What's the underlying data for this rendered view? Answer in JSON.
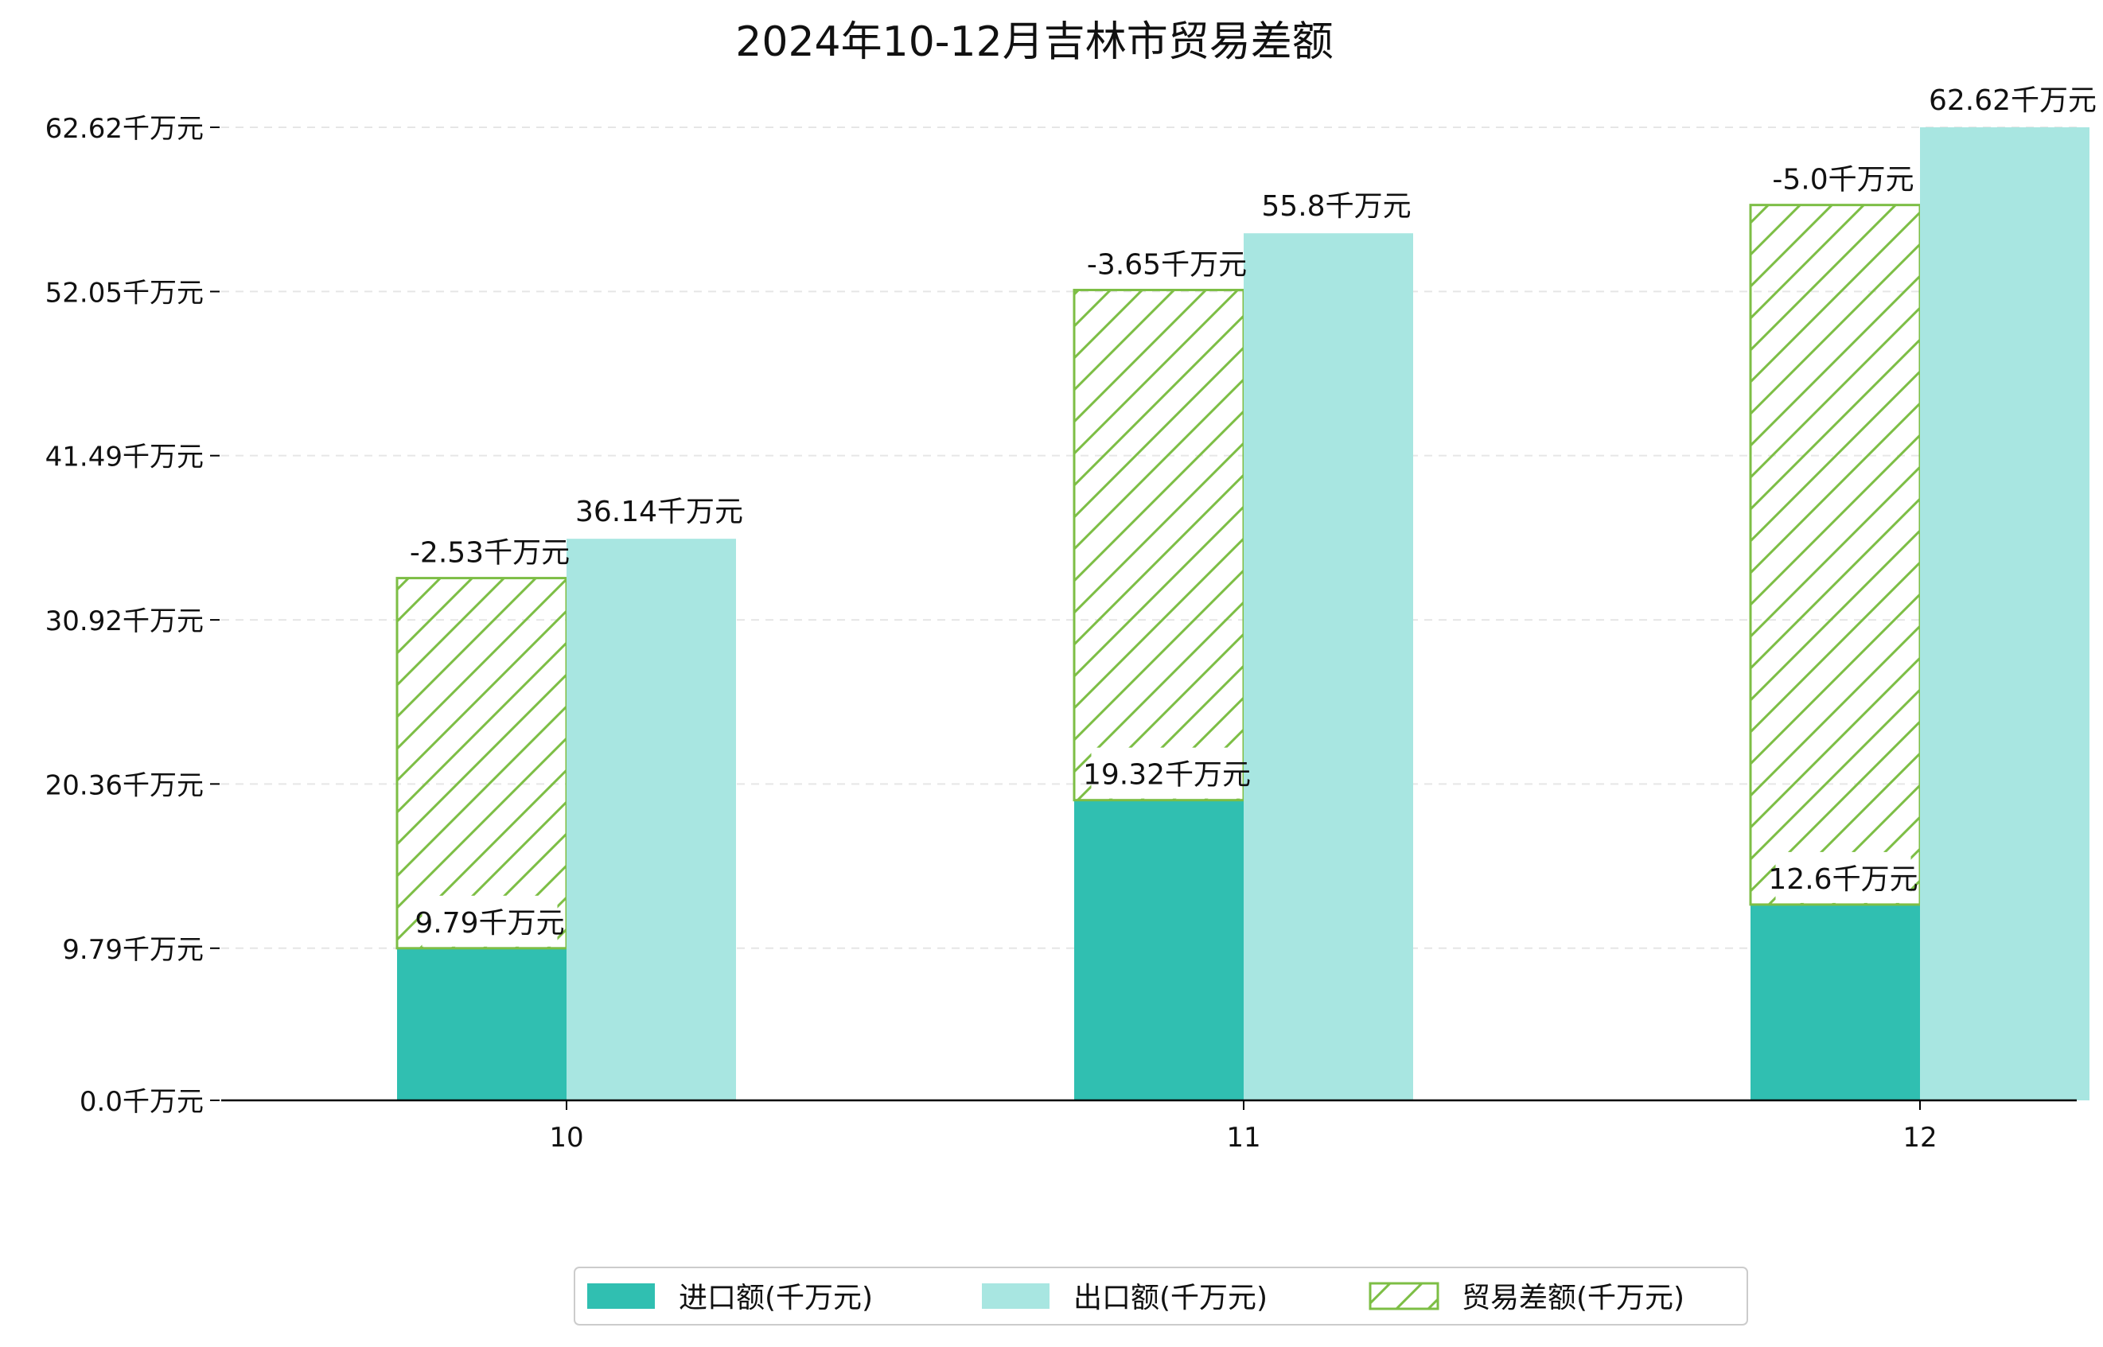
{
  "chart_data": {
    "type": "bar",
    "title": "2024年10-12月吉林市贸易差额",
    "xlabel": "",
    "ylabel": "",
    "categories": [
      "10",
      "11",
      "12"
    ],
    "unit_suffix": "千万元",
    "ylim": [
      0,
      62.62
    ],
    "yticks": [
      0.0,
      9.79,
      20.36,
      30.92,
      41.49,
      52.05,
      62.62
    ],
    "ytick_labels": [
      "0.0千万元",
      "9.79千万元",
      "20.36千万元",
      "30.92千万元",
      "41.49千万元",
      "52.05千万元",
      "62.62千万元"
    ],
    "grid": true,
    "legend_position": "bottom-center",
    "series": [
      {
        "name": "进口额(千万元)",
        "values": [
          9.79,
          19.32,
          12.6
        ],
        "labels": [
          "9.79千万元",
          "19.32千万元",
          "12.6千万元"
        ],
        "color": "#30bfb1",
        "style": "solid"
      },
      {
        "name": "出口额(千万元)",
        "values": [
          36.14,
          55.8,
          62.62
        ],
        "labels": [
          "36.14千万元",
          "55.8千万元",
          "62.62千万元"
        ],
        "color": "#a8e6e1",
        "style": "solid"
      },
      {
        "name": "贸易差额(千万元)",
        "values": [
          -2.53,
          -3.65,
          -5.0
        ],
        "labels": [
          "-2.53千万元",
          "-3.65千万元",
          "-5.0千万元"
        ],
        "color": "#7dbe45",
        "style": "hatched"
      }
    ]
  }
}
